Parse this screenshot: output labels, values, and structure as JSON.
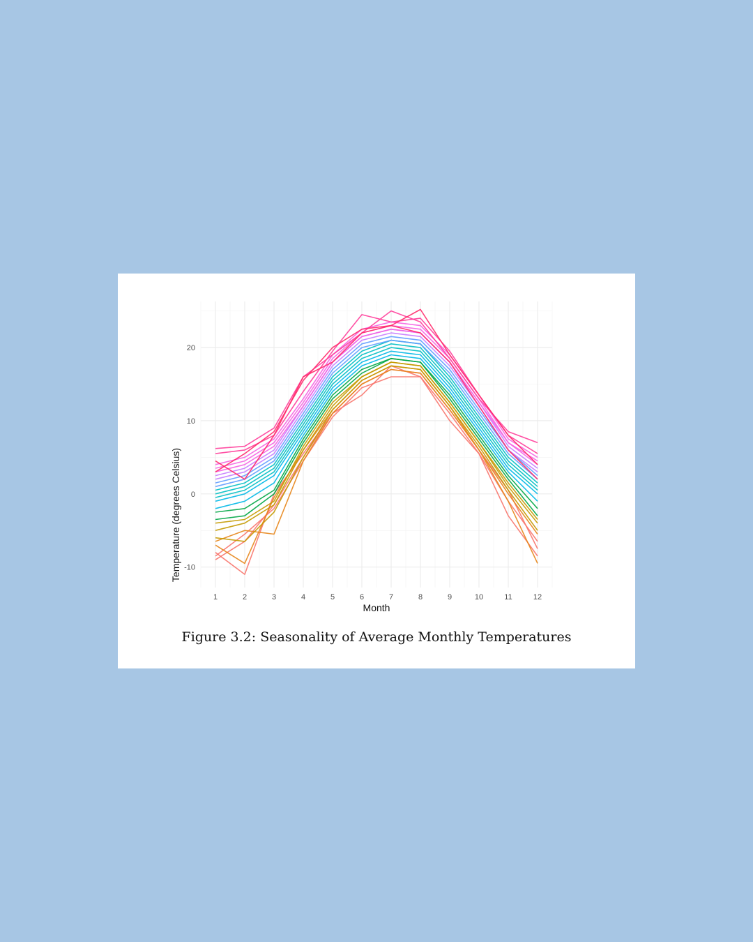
{
  "figure": {
    "caption": "Figure 3.2: Seasonality of Average Monthly Temperatures"
  },
  "chart_data": {
    "type": "line",
    "title": "",
    "xlabel": "Month",
    "ylabel": "Temperature (degrees Celsius)",
    "x": [
      1,
      2,
      3,
      4,
      5,
      6,
      7,
      8,
      9,
      10,
      11,
      12
    ],
    "x_ticks": [
      "1",
      "2",
      "3",
      "4",
      "5",
      "6",
      "7",
      "8",
      "9",
      "10",
      "11",
      "12"
    ],
    "y_ticks": [
      -10,
      0,
      10,
      20
    ],
    "xlim": [
      0.5,
      12.5
    ],
    "ylim": [
      -12.8,
      26.3
    ],
    "grid": true,
    "legend": "none",
    "series_colors": [
      "#F8766D",
      "#E7861B",
      "#C49A00",
      "#00A645",
      "#00B8E7",
      "#00BFC4",
      "#619CFF",
      "#C77CFF",
      "#F564E3",
      "#FF3D9A",
      "#FF2A6A"
    ],
    "series": [
      {
        "values": [
          -9.0,
          -6.5,
          -1.5,
          5.0,
          11.0,
          15.0,
          17.0,
          16.5,
          11.5,
          6.0,
          0.5,
          -7.5
        ]
      },
      {
        "values": [
          -8.5,
          -5.5,
          -2.0,
          4.5,
          10.5,
          14.5,
          16.0,
          16.0,
          11.0,
          5.5,
          -3.0,
          -8.5
        ]
      },
      {
        "values": [
          -8.0,
          -11.0,
          0.0,
          5.5,
          11.0,
          13.5,
          17.5,
          16.0,
          10.0,
          5.5,
          -1.0,
          -6.5
        ]
      },
      {
        "values": [
          -7.0,
          -9.5,
          -0.5,
          6.0,
          11.5,
          15.5,
          17.5,
          17.0,
          12.0,
          6.0,
          0.0,
          -5.5
        ]
      },
      {
        "values": [
          -6.5,
          -5.0,
          -5.5,
          4.5,
          11.0,
          15.0,
          17.0,
          16.5,
          11.5,
          6.0,
          -1.0,
          -9.5
        ]
      },
      {
        "values": [
          -6.0,
          -6.5,
          -2.5,
          5.0,
          11.5,
          15.5,
          17.5,
          17.0,
          12.0,
          6.5,
          0.5,
          -5.0
        ]
      },
      {
        "values": [
          -5.0,
          -4.0,
          -1.5,
          6.0,
          12.0,
          16.0,
          18.0,
          17.5,
          12.5,
          7.0,
          1.0,
          -4.0
        ]
      },
      {
        "values": [
          -4.0,
          -3.5,
          -1.0,
          6.5,
          12.5,
          16.0,
          18.0,
          17.5,
          12.5,
          7.0,
          1.5,
          -3.5
        ]
      },
      {
        "values": [
          -3.5,
          -3.0,
          0.0,
          7.0,
          13.0,
          16.5,
          18.5,
          18.0,
          13.0,
          7.5,
          2.0,
          -3.0
        ]
      },
      {
        "values": [
          -2.5,
          -2.0,
          0.5,
          7.5,
          13.5,
          17.0,
          18.5,
          18.0,
          13.5,
          8.0,
          2.5,
          -2.0
        ]
      },
      {
        "values": [
          -2.0,
          -1.0,
          1.5,
          8.0,
          14.0,
          17.5,
          19.0,
          18.5,
          14.0,
          8.5,
          3.0,
          -1.0
        ]
      },
      {
        "values": [
          -1.0,
          0.0,
          2.5,
          8.5,
          14.5,
          18.0,
          19.5,
          19.0,
          14.5,
          9.0,
          3.5,
          0.0
        ]
      },
      {
        "values": [
          -0.5,
          0.5,
          3.0,
          9.0,
          15.0,
          18.5,
          20.0,
          19.5,
          15.0,
          9.5,
          4.0,
          0.5
        ]
      },
      {
        "values": [
          0.0,
          1.0,
          3.5,
          9.5,
          15.5,
          19.0,
          20.5,
          20.0,
          15.5,
          10.0,
          4.5,
          1.0
        ]
      },
      {
        "values": [
          0.5,
          1.5,
          4.0,
          10.0,
          16.0,
          19.5,
          21.0,
          20.5,
          16.0,
          10.5,
          5.0,
          1.5
        ]
      },
      {
        "values": [
          1.0,
          2.0,
          4.5,
          10.5,
          16.5,
          20.0,
          21.0,
          20.5,
          16.5,
          11.0,
          5.5,
          2.0
        ]
      },
      {
        "values": [
          1.5,
          2.5,
          5.0,
          11.0,
          17.0,
          20.5,
          21.5,
          21.0,
          17.0,
          11.5,
          6.0,
          2.5
        ]
      },
      {
        "values": [
          2.0,
          3.0,
          5.5,
          11.5,
          17.5,
          21.0,
          22.0,
          21.5,
          17.5,
          12.0,
          6.0,
          3.0
        ]
      },
      {
        "values": [
          2.5,
          3.5,
          6.0,
          12.0,
          18.0,
          21.5,
          22.5,
          22.0,
          18.0,
          12.5,
          6.5,
          3.5
        ]
      },
      {
        "values": [
          3.0,
          4.0,
          6.5,
          12.0,
          18.0,
          21.5,
          22.5,
          22.0,
          18.0,
          12.5,
          7.0,
          4.0
        ]
      },
      {
        "values": [
          3.5,
          4.5,
          7.0,
          12.5,
          18.5,
          22.0,
          23.0,
          22.5,
          18.5,
          13.0,
          7.0,
          4.5
        ]
      },
      {
        "values": [
          4.0,
          5.0,
          7.5,
          13.0,
          19.0,
          22.5,
          23.5,
          23.0,
          19.0,
          13.5,
          7.5,
          5.0
        ]
      },
      {
        "values": [
          5.5,
          6.0,
          8.0,
          14.0,
          19.5,
          24.5,
          23.5,
          24.0,
          19.5,
          13.5,
          8.0,
          5.5
        ]
      },
      {
        "values": [
          6.2,
          6.5,
          9.0,
          16.0,
          19.0,
          22.0,
          25.0,
          23.5,
          18.5,
          13.0,
          8.5,
          7.0
        ]
      },
      {
        "values": [
          3.0,
          5.5,
          8.5,
          15.5,
          20.0,
          22.5,
          23.0,
          25.2,
          19.0,
          13.5,
          8.0,
          4.0
        ]
      },
      {
        "values": [
          4.5,
          2.0,
          8.0,
          16.0,
          18.0,
          22.0,
          23.0,
          22.0,
          18.0,
          12.0,
          6.0,
          2.0
        ]
      }
    ]
  }
}
